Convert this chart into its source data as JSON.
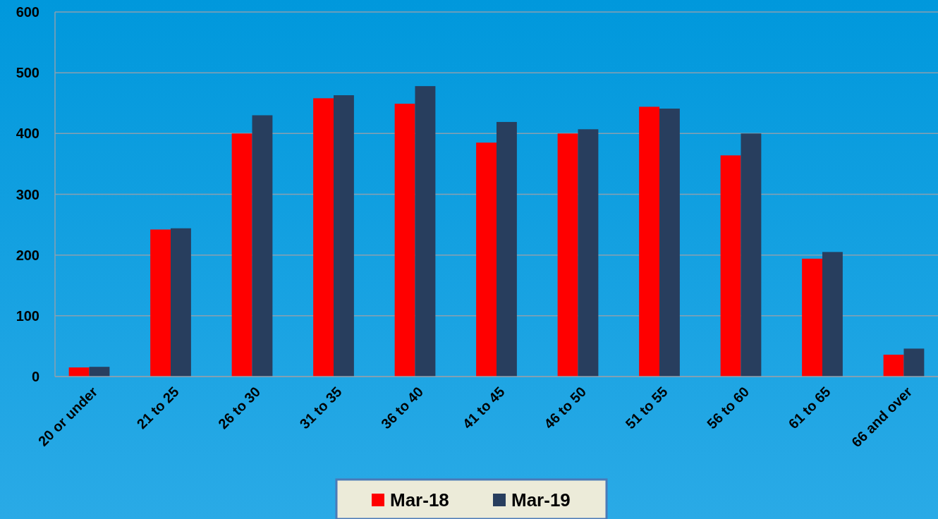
{
  "chart_data": {
    "type": "bar",
    "categories": [
      "20 or under",
      "21 to 25",
      "26 to 30",
      "31 to 35",
      "36 to 40",
      "41 to 45",
      "46 to 50",
      "51 to 55",
      "56 to 60",
      "61 to 65",
      "66 and over"
    ],
    "series": [
      {
        "name": "Mar-18",
        "color": "#ff0000",
        "values": [
          15,
          242,
          400,
          458,
          449,
          385,
          400,
          444,
          364,
          194,
          36
        ]
      },
      {
        "name": "Mar-19",
        "color": "#283e5e",
        "values": [
          16,
          244,
          430,
          463,
          478,
          419,
          407,
          441,
          400,
          205,
          46
        ]
      }
    ],
    "ylim": [
      0,
      600
    ],
    "yticks": [
      0,
      100,
      200,
      300,
      400,
      500,
      600
    ],
    "grid": "y",
    "legend": "bottom"
  }
}
